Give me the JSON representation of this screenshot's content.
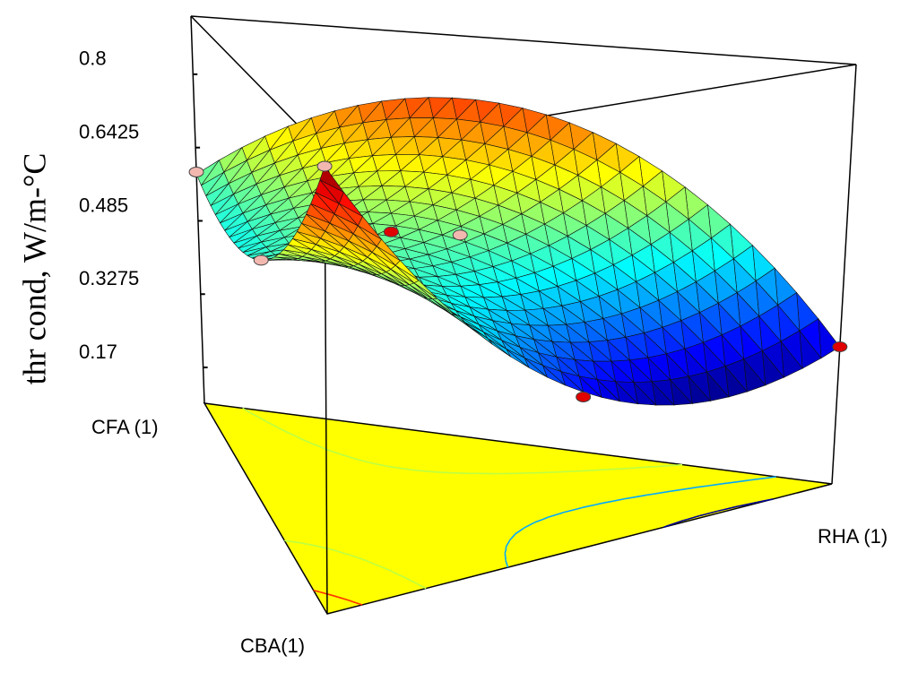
{
  "chart_data": {
    "type": "ternary-surface",
    "y_label": "thr cond, W/m-°C",
    "components": [
      "CFA (1)",
      "CBA(1)",
      "RHA (1)"
    ],
    "ylim": [
      0.093,
      0.925
    ],
    "yticks": [
      0.17,
      0.3275,
      0.485,
      0.6425,
      0.8
    ],
    "points": {
      "CFA": [
        1,
        0,
        0.5,
        0.33,
        0.5,
        0,
        0
      ],
      "CBA": [
        0,
        1,
        0.5,
        0.33,
        0.25,
        0.5,
        0
      ],
      "RHA": [
        0,
        0,
        0,
        0.34,
        0.25,
        0.5,
        1
      ],
      "values": [
        0.59,
        0.9,
        0.58,
        0.615,
        0.584,
        0.38,
        0.365
      ],
      "colors": [
        "#f2b8b0",
        "#f2b8b0",
        "#f2b8b0",
        "#f2b8b0",
        "#e00000",
        "#e00000",
        "#e00000"
      ]
    },
    "base_color": "#ffff00"
  }
}
